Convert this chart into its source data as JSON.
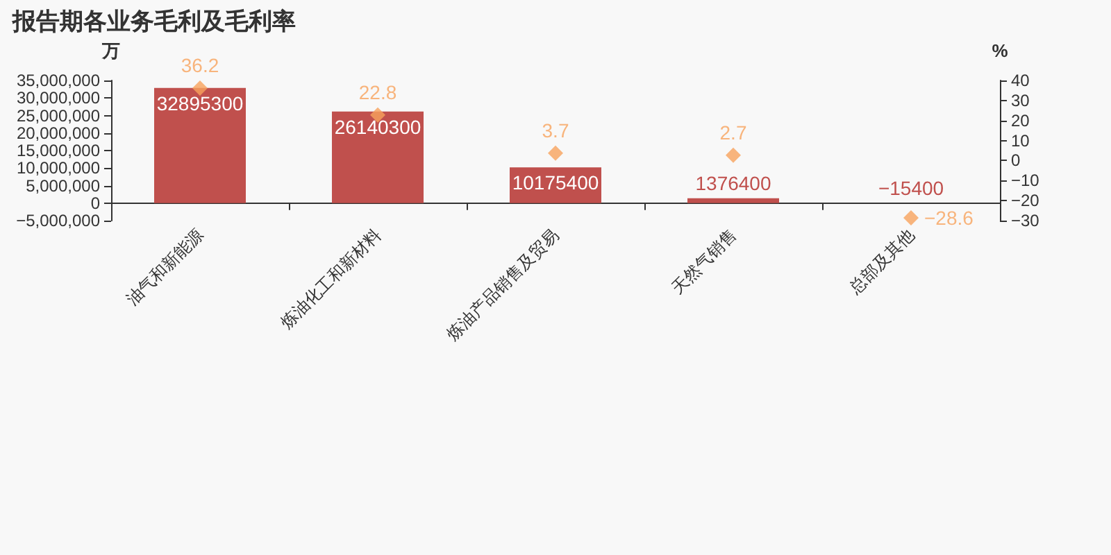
{
  "chart_data": {
    "type": "bar",
    "title": "报告期各业务毛利及毛利率",
    "ylabel": "万",
    "y2label": "%",
    "categories": [
      "油气和新能源",
      "炼油化工和新材料",
      "炼油产品销售及贸易",
      "天然气销售",
      "总部及其他"
    ],
    "series": [
      {
        "color": "#c0504d",
        "values": [
          32895300,
          26140300,
          10175400,
          1376400,
          -15400
        ]
      },
      {
        "type": "scatter",
        "axis": "y2",
        "color": "#f7a35c",
        "marker": "diamond",
        "values": [
          36.2,
          22.8,
          3.7,
          2.7,
          -28.6
        ]
      }
    ],
    "ylim": [
      -5000000,
      35000000
    ],
    "yticks": [
      {
        "value": -5000000,
        "label": "−5,000,000"
      },
      0,
      {
        "value": 5000000,
        "label": "5,000,000"
      },
      {
        "value": 10000000,
        "label": "10,000,000"
      },
      {
        "value": 15000000,
        "label": "15,000,000"
      },
      {
        "value": 20000000,
        "label": "20,000,000"
      },
      {
        "value": 25000000,
        "label": "25,000,000"
      },
      {
        "value": 30000000,
        "label": "30,000,000"
      },
      {
        "value": 35000000,
        "label": "35,000,000"
      }
    ],
    "y2lim": [
      -30,
      40
    ],
    "y2ticks": [
      {
        "value": -30,
        "label": "−30"
      },
      {
        "value": -20,
        "label": "−20"
      },
      {
        "value": -10,
        "label": "−10"
      },
      0,
      10,
      20,
      30,
      40
    ],
    "data_labels": true,
    "grid": false
  }
}
